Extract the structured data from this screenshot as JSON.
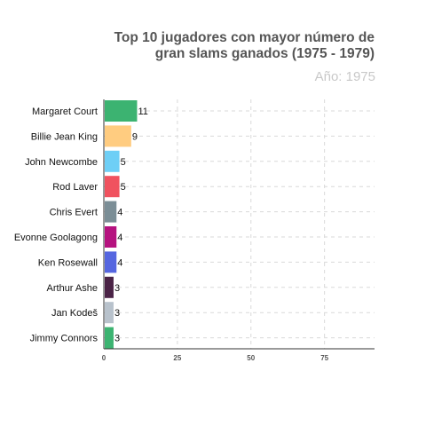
{
  "chart_data": {
    "type": "bar",
    "orientation": "horizontal",
    "title_lines": [
      "Top 10 jugadores con mayor número de",
      "gran slams ganados (1975 - 1979)"
    ],
    "subtitle": "Año: 1975",
    "categories": [
      "Margaret Court",
      "Billie Jean King",
      "John Newcombe",
      "Rod Laver",
      "Chris Evert",
      "Evonne Goolagong",
      "Ken Rosewall",
      "Arthur Ashe",
      "Jan Kodeš",
      "Jimmy Connors"
    ],
    "values": [
      11,
      9,
      5,
      5,
      4,
      4,
      4,
      3,
      3,
      3
    ],
    "value_labels": [
      "11",
      "9",
      "5",
      "5",
      "4",
      "4",
      "4",
      "3",
      "3",
      "3"
    ],
    "colors": [
      "#3cb371",
      "#ffcc80",
      "#6ecff6",
      "#f0525f",
      "#7b8e96",
      "#b5127f",
      "#5566e0",
      "#4a2346",
      "#b8c2cc",
      "#3cb371"
    ],
    "x_ticks": [
      "0",
      "25",
      "50",
      "75"
    ],
    "x_tick_values": [
      0,
      25,
      50,
      75
    ],
    "xlim": [
      0,
      92
    ],
    "grid": true
  }
}
